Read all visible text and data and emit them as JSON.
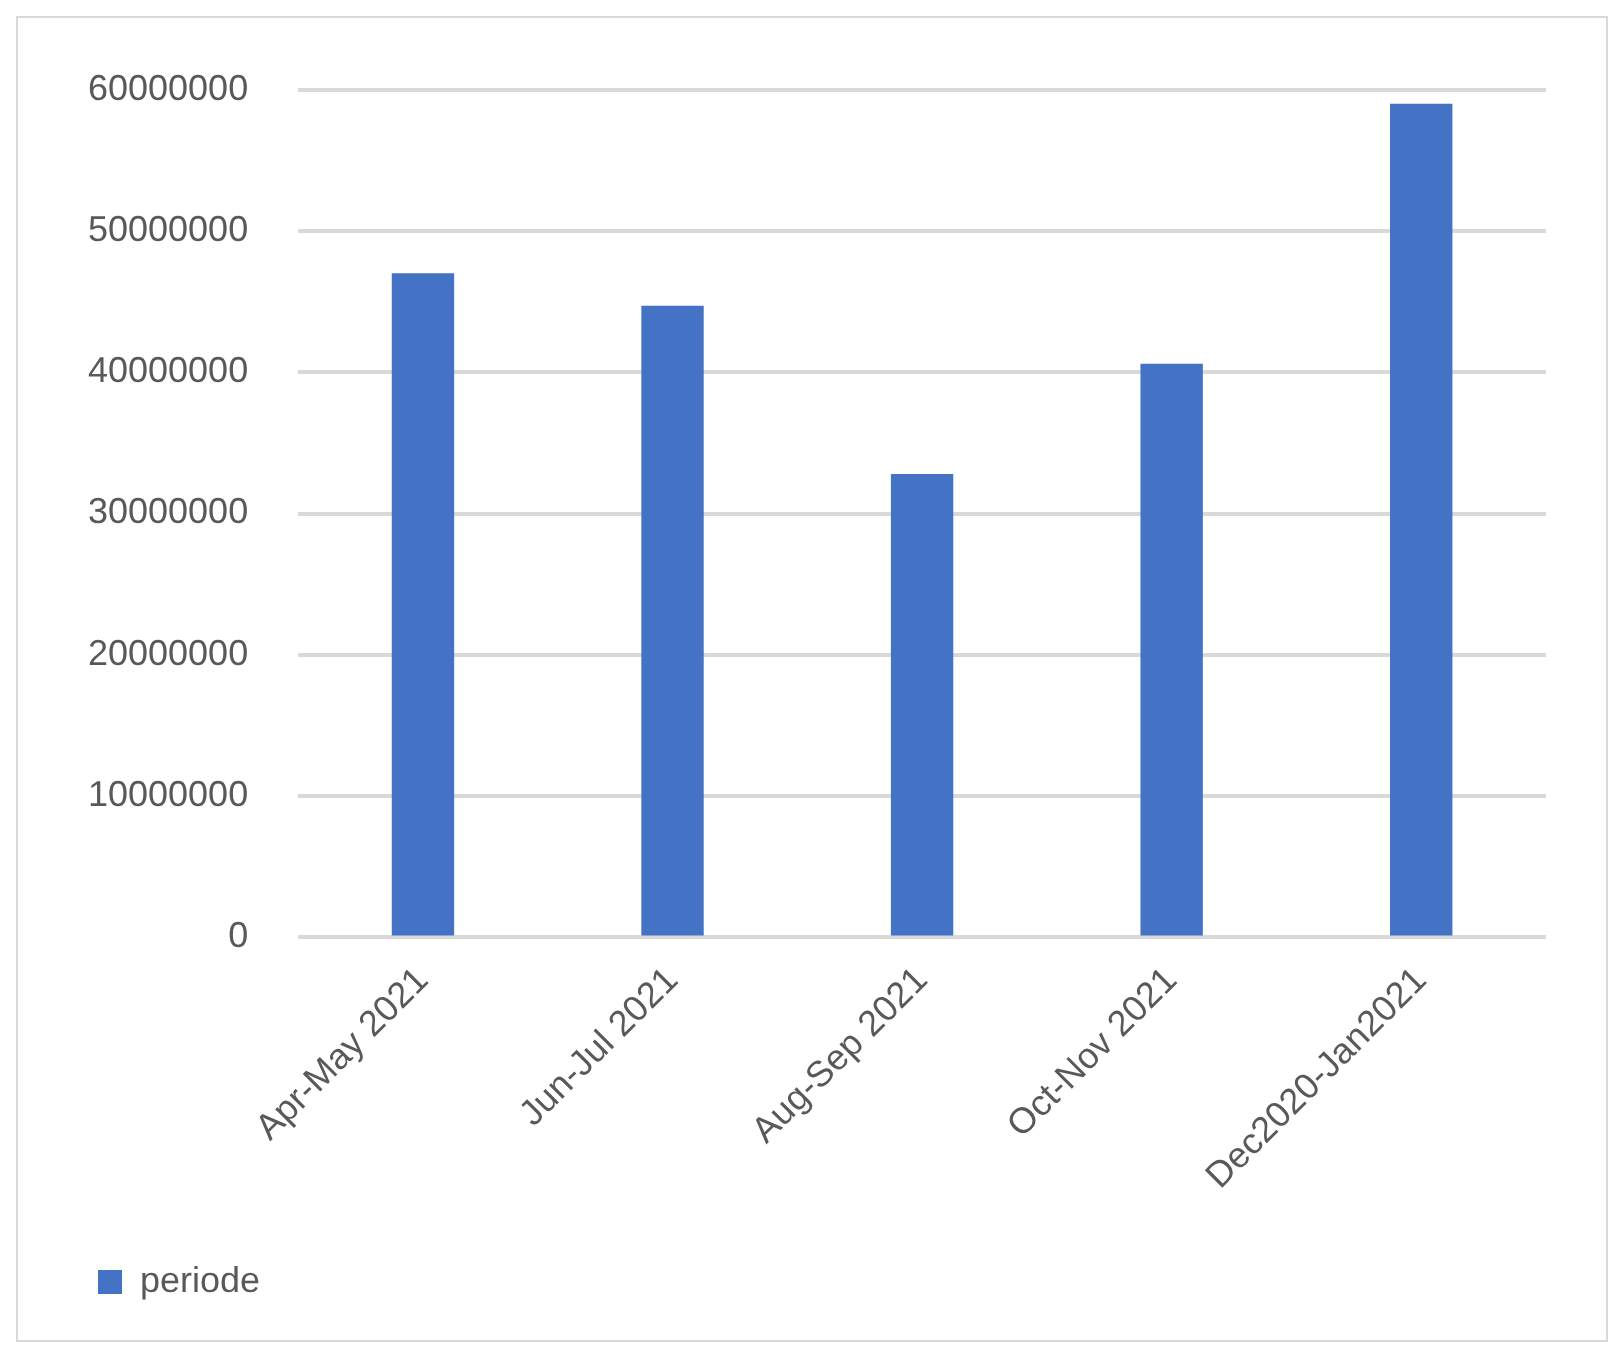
{
  "chart_data": {
    "type": "bar",
    "categories": [
      "Apr-May 2021",
      "Jun-Jul 2021",
      "Aug-Sep 2021",
      "Oct-Nov 2021",
      "Dec2020-Jan2021"
    ],
    "series": [
      {
        "name": "periode",
        "color": "#4472c4",
        "values": [
          47000000,
          44700000,
          32800000,
          40600000,
          59000000
        ]
      }
    ],
    "ylim": [
      0,
      60000000
    ],
    "yticks": [
      0,
      10000000,
      20000000,
      30000000,
      40000000,
      50000000,
      60000000
    ],
    "grid": "y",
    "legend": "bottom left"
  }
}
